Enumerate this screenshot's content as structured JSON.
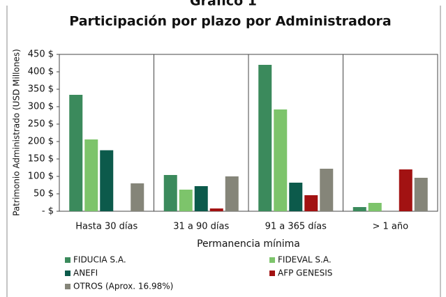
{
  "chart_data": {
    "type": "bar",
    "supertitle": "Gráfico 1",
    "title": "Participación por plazo por Administradora",
    "y_label": "Patrimonio Administrado (USD Millones)",
    "x_label": "Permanencia mínima",
    "categories": [
      "Hasta 30 días",
      "31 a 90 días",
      "91 a 365 días",
      "> 1 año"
    ],
    "series": [
      {
        "name": "FIDUCIA S.A.",
        "color": "#3b8a5c",
        "values": [
          334,
          104,
          420,
          12
        ]
      },
      {
        "name": "FIDEVAL S.A.",
        "color": "#7dc46b",
        "values": [
          206,
          62,
          292,
          24
        ]
      },
      {
        "name": "ANEFI",
        "color": "#0c5a4b",
        "values": [
          175,
          72,
          82,
          0
        ]
      },
      {
        "name": "AFP GENESIS",
        "color": "#a21212",
        "values": [
          0,
          8,
          46,
          120
        ]
      },
      {
        "name": "OTROS (Aprox. 16.98%)",
        "color": "#858579",
        "values": [
          80,
          100,
          122,
          96
        ]
      }
    ],
    "ylim": [
      0,
      450
    ],
    "yticks": [
      {
        "value": 0,
        "label": "-   $"
      },
      {
        "value": 50,
        "label": "50 $"
      },
      {
        "value": 100,
        "label": "100 $"
      },
      {
        "value": 150,
        "label": "150 $"
      },
      {
        "value": 200,
        "label": "200 $"
      },
      {
        "value": 250,
        "label": "250 $"
      },
      {
        "value": 300,
        "label": "300 $"
      },
      {
        "value": 350,
        "label": "350 $"
      },
      {
        "value": 400,
        "label": "400 $"
      },
      {
        "value": 450,
        "label": "450 $"
      }
    ]
  }
}
